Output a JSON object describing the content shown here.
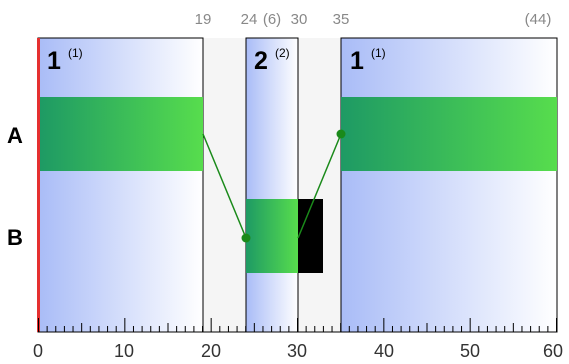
{
  "top_labels": [
    "19",
    "24",
    "(6)",
    "30",
    "35",
    "(44)"
  ],
  "panels": [
    {
      "number": "1",
      "superscript": "(1)"
    },
    {
      "number": "2",
      "superscript": "(2)"
    },
    {
      "number": "1",
      "superscript": "(1)"
    }
  ],
  "rows": [
    "A",
    "B"
  ],
  "axis": {
    "min": 0,
    "max": 60,
    "minor_step": 1,
    "major_step": 10,
    "labels": [
      "0",
      "10",
      "20",
      "30",
      "40",
      "50",
      "60"
    ]
  },
  "colors": {
    "panel_dark": "#a9bcf7",
    "panel_light": "#ffffff",
    "gap_fill": "#f5f5f5",
    "bar_dark": "#1e9a64",
    "bar_light": "#57dd4d",
    "link": "#1a8a1a",
    "start_marker": "#e53030",
    "axis_label": "#333333",
    "top_label": "#888888"
  }
}
